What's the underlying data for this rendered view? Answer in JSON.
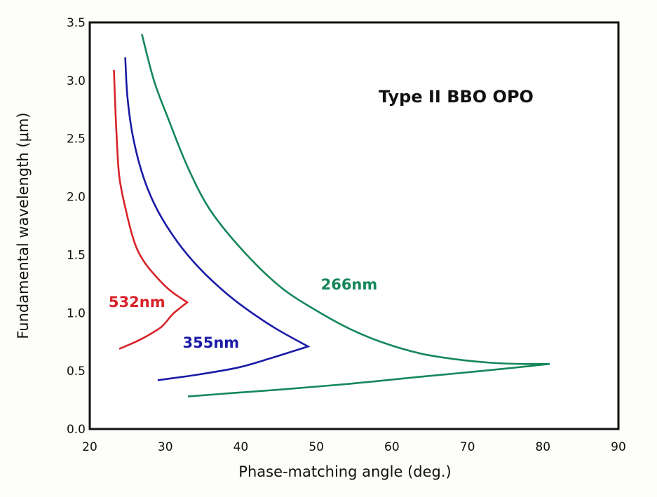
{
  "chart_data": {
    "type": "line",
    "title": "Type II  BBO OPO",
    "title_placement": "top-right inside plot",
    "xlabel": "Phase-matching angle  (deg.)",
    "ylabel": "Fundamental wavelength (μm)",
    "xlim": [
      20,
      90
    ],
    "ylim": [
      0.0,
      3.5
    ],
    "xticks": [
      20,
      30,
      40,
      50,
      60,
      70,
      80,
      90
    ],
    "xtick_labels": [
      "20",
      "30",
      "40",
      "50",
      "60",
      "70",
      "80",
      "90"
    ],
    "yticks": [
      0.0,
      0.5,
      1.0,
      1.5,
      2.0,
      2.5,
      3.0,
      3.5
    ],
    "ytick_labels": [
      "0.0",
      "0.5",
      "1.0",
      "1.5",
      "2.0",
      "2.5",
      "3.0",
      "3.5"
    ],
    "grid": false,
    "legend": "inline labels",
    "series": [
      {
        "name": "532nm",
        "color": "#d8232a",
        "label_at": [
          22.5,
          1.05
        ],
        "points": [
          [
            23.2,
            3.09
          ],
          [
            23.5,
            2.6
          ],
          [
            23.9,
            2.18
          ],
          [
            24.8,
            1.88
          ],
          [
            25.9,
            1.61
          ],
          [
            27.0,
            1.46
          ],
          [
            28.4,
            1.34
          ],
          [
            30.5,
            1.2
          ],
          [
            32.9,
            1.09
          ],
          [
            31.0,
            0.99
          ],
          [
            29.5,
            0.88
          ],
          [
            27.0,
            0.78
          ],
          [
            25.0,
            0.72
          ],
          [
            23.9,
            0.69
          ]
        ]
      },
      {
        "name": "355nm",
        "color": "#1a1aa6",
        "label_at": [
          32.3,
          0.7
        ],
        "points": [
          [
            24.7,
            3.2
          ],
          [
            25.0,
            2.85
          ],
          [
            25.8,
            2.49
          ],
          [
            27.2,
            2.15
          ],
          [
            29.0,
            1.88
          ],
          [
            31.5,
            1.62
          ],
          [
            34.3,
            1.4
          ],
          [
            37.5,
            1.2
          ],
          [
            40.6,
            1.04
          ],
          [
            44.5,
            0.87
          ],
          [
            48.9,
            0.71
          ],
          [
            44.0,
            0.61
          ],
          [
            39.7,
            0.53
          ],
          [
            34.5,
            0.47
          ],
          [
            29.0,
            0.42
          ]
        ]
      },
      {
        "name": "266nm",
        "color": "#15875a",
        "label_at": [
          50.6,
          1.2
        ],
        "points": [
          [
            26.9,
            3.4
          ],
          [
            28.5,
            3.0
          ],
          [
            30.4,
            2.67
          ],
          [
            33.0,
            2.25
          ],
          [
            36.0,
            1.88
          ],
          [
            40.5,
            1.52
          ],
          [
            45.3,
            1.22
          ],
          [
            50.0,
            1.02
          ],
          [
            54.5,
            0.86
          ],
          [
            59.0,
            0.74
          ],
          [
            63.8,
            0.65
          ],
          [
            68.5,
            0.6
          ],
          [
            73.1,
            0.57
          ],
          [
            77.0,
            0.56
          ],
          [
            80.9,
            0.56
          ],
          [
            72.0,
            0.5
          ],
          [
            63.8,
            0.45
          ],
          [
            54.5,
            0.39
          ],
          [
            45.3,
            0.34
          ],
          [
            39.0,
            0.31
          ],
          [
            33.0,
            0.28
          ]
        ]
      }
    ]
  }
}
